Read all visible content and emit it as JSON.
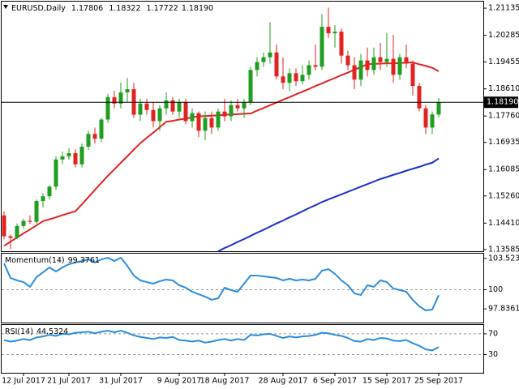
{
  "chart_data": [
    {
      "type": "candlestick",
      "title": "EURUSD,Daily",
      "categories": [
        null,
        null,
        null,
        "12 Jul 2017",
        null,
        null,
        null,
        null,
        null,
        null,
        "21 Jul 2017",
        null,
        null,
        null,
        null,
        null,
        null,
        null,
        "31 Jul 2017",
        null,
        null,
        null,
        null,
        null,
        null,
        null,
        null,
        "9 Aug 2017",
        null,
        null,
        null,
        null,
        null,
        null,
        "18 Aug 2017",
        null,
        null,
        null,
        null,
        null,
        null,
        null,
        null,
        "28 Aug 2017",
        null,
        null,
        null,
        null,
        null,
        null,
        null,
        "6 Sep 2017",
        null,
        null,
        null,
        null,
        null,
        null,
        null,
        "15 Sep 2017",
        null,
        null,
        null,
        null,
        null,
        null,
        null,
        "25 Sep 2017"
      ],
      "ohlc": [
        [
          1.1465,
          1.1478,
          1.139,
          1.14
        ],
        [
          1.14,
          1.1405,
          1.136,
          1.1395
        ],
        [
          1.1395,
          1.144,
          1.139,
          1.1432
        ],
        [
          1.1432,
          1.1455,
          1.1425,
          1.1448
        ],
        [
          1.1448,
          1.1465,
          1.1438,
          1.1445
        ],
        [
          1.1445,
          1.1515,
          1.144,
          1.151
        ],
        [
          1.151,
          1.1535,
          1.149,
          1.1525
        ],
        [
          1.1525,
          1.156,
          1.1515,
          1.1555
        ],
        [
          1.1555,
          1.165,
          1.1545,
          1.164
        ],
        [
          1.164,
          1.1665,
          1.1625,
          1.165
        ],
        [
          1.165,
          1.1675,
          1.164,
          1.166
        ],
        [
          1.166,
          1.1672,
          1.1615,
          1.1625
        ],
        [
          1.1625,
          1.169,
          1.1615,
          1.168
        ],
        [
          1.168,
          1.173,
          1.167,
          1.172
        ],
        [
          1.172,
          1.174,
          1.169,
          1.1705
        ],
        [
          1.1705,
          1.177,
          1.1695,
          1.1765
        ],
        [
          1.1765,
          1.1845,
          1.1755,
          1.1835
        ],
        [
          1.1835,
          1.1855,
          1.18,
          1.1815
        ],
        [
          1.1815,
          1.188,
          1.18,
          1.185
        ],
        [
          1.185,
          1.1895,
          1.182,
          1.186
        ],
        [
          1.186,
          1.188,
          1.177,
          1.178
        ],
        [
          1.178,
          1.183,
          1.176,
          1.1815
        ],
        [
          1.1815,
          1.183,
          1.178,
          1.1795
        ],
        [
          1.1795,
          1.182,
          1.174,
          1.176
        ],
        [
          1.176,
          1.181,
          1.173,
          1.18
        ],
        [
          1.18,
          1.185,
          1.178,
          1.1825
        ],
        [
          1.1825,
          1.1835,
          1.178,
          1.179
        ],
        [
          1.179,
          1.183,
          1.177,
          1.182
        ],
        [
          1.182,
          1.183,
          1.175,
          1.176
        ],
        [
          1.176,
          1.18,
          1.174,
          1.1785
        ],
        [
          1.1785,
          1.179,
          1.171,
          1.173
        ],
        [
          1.173,
          1.179,
          1.17,
          1.177
        ],
        [
          1.177,
          1.179,
          1.172,
          1.174
        ],
        [
          1.174,
          1.18,
          1.173,
          1.179
        ],
        [
          1.179,
          1.183,
          1.176,
          1.1775
        ],
        [
          1.1775,
          1.1825,
          1.176,
          1.181
        ],
        [
          1.181,
          1.183,
          1.179,
          1.18
        ],
        [
          1.18,
          1.183,
          1.177,
          1.182
        ],
        [
          1.182,
          1.193,
          1.181,
          1.192
        ],
        [
          1.192,
          1.196,
          1.19,
          1.1945
        ],
        [
          1.1945,
          1.1975,
          1.193,
          1.196
        ],
        [
          1.196,
          1.207,
          1.194,
          1.1975
        ],
        [
          1.1975,
          1.2,
          1.189,
          1.19
        ],
        [
          1.19,
          1.196,
          1.186,
          1.188
        ],
        [
          1.188,
          1.1925,
          1.1855,
          1.191
        ],
        [
          1.191,
          1.1925,
          1.187,
          1.1885
        ],
        [
          1.1885,
          1.1935,
          1.1875,
          1.1905
        ],
        [
          1.1905,
          1.195,
          1.189,
          1.1935
        ],
        [
          1.1935,
          1.2,
          1.192,
          1.193
        ],
        [
          1.193,
          1.2095,
          1.192,
          1.2055
        ],
        [
          1.2055,
          1.2115,
          1.202,
          1.2035
        ],
        [
          1.2035,
          1.206,
          1.199,
          1.204
        ],
        [
          1.204,
          1.205,
          1.194,
          1.1965
        ],
        [
          1.1965,
          1.198,
          1.192,
          1.1935
        ],
        [
          1.1935,
          1.196,
          1.186,
          1.189
        ],
        [
          1.189,
          1.197,
          1.187,
          1.195
        ],
        [
          1.195,
          1.199,
          1.19,
          1.192
        ],
        [
          1.192,
          1.199,
          1.1905,
          1.196
        ],
        [
          1.196,
          1.2005,
          1.192,
          1.1945
        ],
        [
          1.1945,
          1.2035,
          1.193,
          1.1955
        ],
        [
          1.1955,
          1.203,
          1.188,
          1.1905
        ],
        [
          1.1905,
          1.197,
          1.189,
          1.196
        ],
        [
          1.196,
          1.2,
          1.1925,
          1.194
        ],
        [
          1.194,
          1.195,
          1.184,
          1.187
        ],
        [
          1.187,
          1.188,
          1.179,
          1.18
        ],
        [
          1.18,
          1.181,
          1.172,
          1.174
        ],
        [
          1.174,
          1.179,
          1.172,
          1.1781
        ],
        [
          1.17806,
          1.18322,
          1.17722,
          1.1819
        ]
      ],
      "last_close_label": "1.18190",
      "up_color": "#1f9e1f",
      "down_color": "#e32222",
      "series": [
        {
          "color": "#e32222",
          "values": [
            1.137,
            1.1383,
            1.1396,
            1.1409,
            1.1421,
            1.1434,
            1.1447,
            1.1453,
            1.1459,
            1.1466,
            1.1472,
            1.1478,
            1.15,
            1.1522,
            1.1545,
            1.1567,
            1.1589,
            1.1609,
            1.163,
            1.165,
            1.1671,
            1.1691,
            1.1708,
            1.1724,
            1.1741,
            1.1758,
            1.1761,
            1.1765,
            1.1768,
            1.1772,
            1.1775,
            1.1776,
            1.1777,
            1.1778,
            1.178,
            1.1781,
            1.1782,
            1.1783,
            1.1784,
            1.1793,
            1.1801,
            1.181,
            1.1818,
            1.1827,
            1.1835,
            1.1844,
            1.1852,
            1.1861,
            1.187,
            1.1878,
            1.1887,
            1.1895,
            1.1904,
            1.1912,
            1.1921,
            1.1929,
            1.1938,
            1.1939,
            1.194,
            1.1941,
            1.1941,
            1.1942,
            1.1943,
            1.1944,
            1.1938,
            1.1933,
            1.1927,
            1.1916
          ]
        },
        {
          "color": "#1f2fcc",
          "values": [
            null,
            null,
            null,
            null,
            null,
            null,
            null,
            null,
            null,
            null,
            null,
            null,
            null,
            null,
            null,
            null,
            null,
            null,
            null,
            null,
            null,
            null,
            null,
            null,
            null,
            null,
            null,
            null,
            null,
            null,
            null,
            null,
            null,
            1.1353,
            1.1363,
            1.1372,
            1.1382,
            1.1391,
            1.1401,
            1.1411,
            1.142,
            1.143,
            1.144,
            1.1449,
            1.1459,
            1.1468,
            1.1478,
            1.1488,
            1.1497,
            1.1507,
            1.1515,
            1.1523,
            1.1531,
            1.1539,
            1.1547,
            1.1555,
            1.1563,
            1.1571,
            1.1579,
            1.1585,
            1.1592,
            1.1598,
            1.1605,
            1.1611,
            1.1617,
            1.1624,
            1.163,
            1.1643
          ]
        }
      ],
      "ylim": [
        1.1353,
        1.2134
      ],
      "yticks": [
        1.21135,
        1.20285,
        1.19455,
        {
          "value": 1.1861,
          "label": "1.18610"
        },
        {
          "value": 1.1776,
          "label": "1.17760"
        },
        1.16935,
        1.16085,
        {
          "value": 1.1526,
          "label": "1.15260"
        },
        {
          "value": 1.1441,
          "label": "1.14410"
        },
        1.13585
      ],
      "current_price_line": true,
      "grid": false
    },
    {
      "type": "line",
      "title": "Momentum(14)",
      "series": [
        {
          "color": "#2a8de0",
          "values": [
            102.96,
            101.32,
            101.05,
            100.86,
            100.32,
            101.41,
            101.96,
            102.51,
            102.05,
            102.51,
            102.87,
            103.06,
            103.24,
            103.42,
            103.06,
            103.42,
            103.6,
            103.24,
            103.6,
            102.69,
            101.59,
            101.05,
            100.86,
            100.68,
            100.96,
            101.14,
            101.05,
            100.5,
            100.23,
            99.77,
            99.49,
            99.22,
            98.86,
            99.04,
            100.23,
            99.95,
            99.77,
            100.68,
            101.59,
            101.59,
            101.5,
            101.41,
            101.32,
            101.05,
            101.23,
            101.05,
            101.14,
            101.05,
            101.23,
            102.14,
            102.32,
            101.78,
            101.05,
            100.5,
            99.59,
            99.4,
            100.5,
            100.32,
            101.05,
            100.86,
            100.14,
            99.95,
            99.77,
            98.86,
            98.13,
            97.67,
            97.76,
            99.3761
          ]
        }
      ],
      "ylim": [
        96.3,
        104.06
      ],
      "yticks": [
        103.5235,
        100,
        97.8361
      ],
      "level_lines": [
        100
      ]
    },
    {
      "type": "line",
      "title": "RSI(14)",
      "series": [
        {
          "color": "#2a8de0",
          "values": [
            58,
            55,
            57,
            60,
            58,
            63,
            65,
            68,
            66,
            70,
            69,
            72,
            73,
            74,
            71,
            74,
            76,
            73,
            76,
            72,
            67,
            64,
            62,
            60,
            63,
            62,
            64,
            58,
            57,
            55,
            57,
            53,
            55,
            58,
            60,
            57,
            60,
            58,
            68,
            67,
            69,
            70,
            66,
            62,
            65,
            63,
            65,
            66,
            68,
            72,
            71,
            68,
            66,
            62,
            56,
            55,
            60,
            58,
            62,
            61,
            57,
            56,
            58,
            52,
            47,
            40,
            38,
            44.5324
          ]
        }
      ],
      "ylim": [
        -5,
        87
      ],
      "yticks": [
        70,
        30
      ],
      "level_lines": [
        70,
        30
      ]
    }
  ]
}
